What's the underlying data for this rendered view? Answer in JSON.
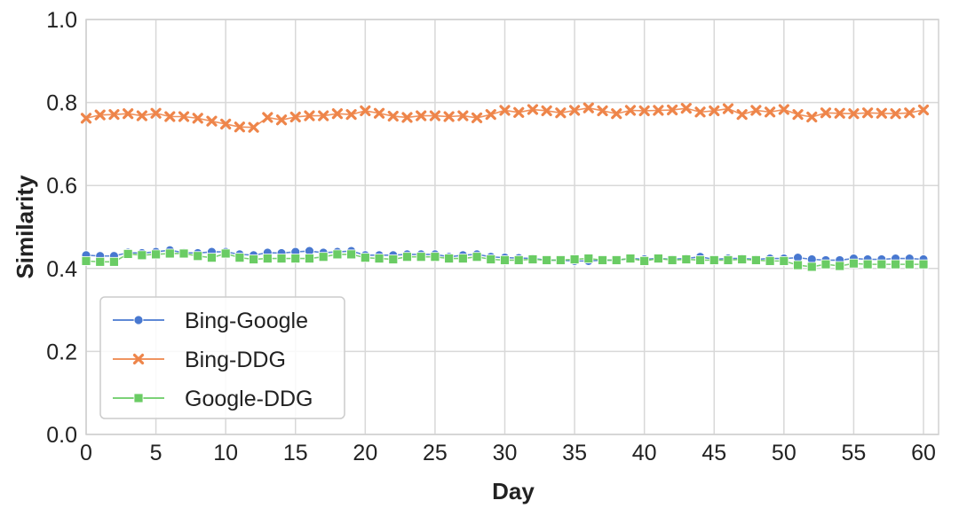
{
  "chart_data": {
    "type": "line",
    "title": "",
    "xlabel": "Day",
    "ylabel": "Similarity",
    "xlim": [
      0,
      61
    ],
    "ylim": [
      0,
      1
    ],
    "xticks": [
      0,
      5,
      10,
      15,
      20,
      25,
      30,
      35,
      40,
      45,
      50,
      55,
      60
    ],
    "yticks": [
      "0.0",
      "0.2",
      "0.4",
      "0.6",
      "0.8",
      "1.0"
    ],
    "grid": true,
    "legend_position": "lower-left",
    "x": [
      0,
      1,
      2,
      3,
      4,
      5,
      6,
      7,
      8,
      9,
      10,
      11,
      12,
      13,
      14,
      15,
      16,
      17,
      18,
      19,
      20,
      21,
      22,
      23,
      24,
      25,
      26,
      27,
      28,
      29,
      30,
      31,
      32,
      33,
      34,
      35,
      36,
      37,
      38,
      39,
      40,
      41,
      42,
      43,
      44,
      45,
      46,
      47,
      48,
      49,
      50,
      51,
      52,
      53,
      54,
      55,
      56,
      57,
      58,
      59,
      60
    ],
    "series": [
      {
        "name": "Bing-Google",
        "color": "#4878d0",
        "marker": "circle",
        "values": [
          0.432,
          0.43,
          0.43,
          0.438,
          0.437,
          0.44,
          0.444,
          0.438,
          0.437,
          0.44,
          0.44,
          0.434,
          0.432,
          0.438,
          0.437,
          0.44,
          0.442,
          0.438,
          0.44,
          0.442,
          0.432,
          0.432,
          0.432,
          0.434,
          0.434,
          0.434,
          0.428,
          0.432,
          0.434,
          0.428,
          0.426,
          0.425,
          0.424,
          0.42,
          0.42,
          0.418,
          0.418,
          0.42,
          0.42,
          0.424,
          0.422,
          0.424,
          0.422,
          0.424,
          0.428,
          0.422,
          0.424,
          0.424,
          0.422,
          0.424,
          0.424,
          0.426,
          0.422,
          0.42,
          0.42,
          0.424,
          0.422,
          0.422,
          0.424,
          0.424,
          0.422
        ]
      },
      {
        "name": "Bing-DDG",
        "color": "#ee854a",
        "marker": "x",
        "values": [
          0.762,
          0.77,
          0.771,
          0.773,
          0.768,
          0.774,
          0.766,
          0.766,
          0.762,
          0.755,
          0.748,
          0.741,
          0.74,
          0.764,
          0.758,
          0.765,
          0.768,
          0.768,
          0.773,
          0.771,
          0.78,
          0.774,
          0.767,
          0.764,
          0.768,
          0.768,
          0.766,
          0.768,
          0.763,
          0.771,
          0.781,
          0.776,
          0.783,
          0.78,
          0.775,
          0.781,
          0.787,
          0.78,
          0.773,
          0.781,
          0.78,
          0.781,
          0.782,
          0.786,
          0.777,
          0.78,
          0.785,
          0.771,
          0.781,
          0.777,
          0.783,
          0.771,
          0.765,
          0.775,
          0.774,
          0.773,
          0.775,
          0.774,
          0.773,
          0.775,
          0.782
        ]
      },
      {
        "name": "Google-DDG",
        "color": "#6acc64",
        "marker": "square",
        "values": [
          0.418,
          0.416,
          0.416,
          0.435,
          0.432,
          0.434,
          0.436,
          0.436,
          0.43,
          0.426,
          0.436,
          0.426,
          0.422,
          0.424,
          0.424,
          0.424,
          0.424,
          0.428,
          0.434,
          0.434,
          0.426,
          0.424,
          0.422,
          0.428,
          0.428,
          0.428,
          0.424,
          0.424,
          0.428,
          0.422,
          0.42,
          0.42,
          0.422,
          0.42,
          0.42,
          0.422,
          0.424,
          0.42,
          0.42,
          0.424,
          0.418,
          0.424,
          0.42,
          0.422,
          0.42,
          0.42,
          0.42,
          0.422,
          0.42,
          0.418,
          0.418,
          0.408,
          0.404,
          0.41,
          0.406,
          0.412,
          0.41,
          0.41,
          0.41,
          0.41,
          0.41
        ]
      }
    ]
  }
}
